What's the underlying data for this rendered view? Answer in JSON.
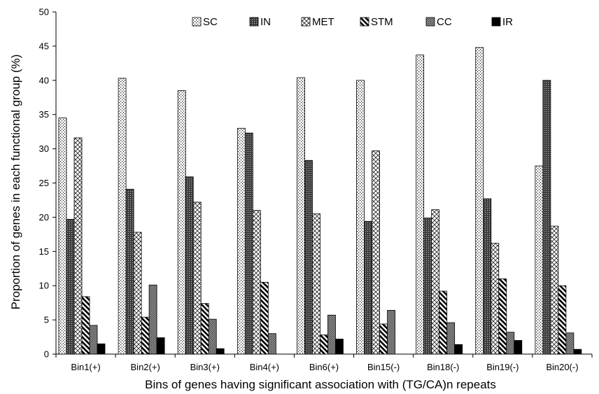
{
  "chart_data": {
    "type": "bar",
    "title": "",
    "xlabel": "Bins of genes having significant association with (TG/CA)n repeats",
    "ylabel": "Proportion of genes in each functional group (%)",
    "ylim": [
      0,
      50
    ],
    "yticks": [
      0,
      5,
      10,
      15,
      20,
      25,
      30,
      35,
      40,
      45,
      50
    ],
    "grid": false,
    "legend_position": "top",
    "categories": [
      "Bin1(+)",
      "Bin2(+)",
      "Bin3(+)",
      "Bin4(+)",
      "Bin6(+)",
      "Bin15(-)",
      "Bin18(-)",
      "Bin19(-)",
      "Bin20(-)"
    ],
    "series": [
      {
        "name": "SC",
        "pattern": "dots",
        "values": [
          34.5,
          40.3,
          38.5,
          33.0,
          40.4,
          40.0,
          43.7,
          44.8,
          27.5
        ]
      },
      {
        "name": "IN",
        "pattern": "dense-check",
        "values": [
          19.7,
          24.1,
          25.9,
          32.3,
          28.3,
          19.4,
          19.9,
          22.7,
          40.0
        ]
      },
      {
        "name": "MET",
        "pattern": "crosshatch",
        "values": [
          31.6,
          17.8,
          22.2,
          21.0,
          20.5,
          29.7,
          21.1,
          16.2,
          18.7
        ]
      },
      {
        "name": "STM",
        "pattern": "bold-diagonal",
        "values": [
          8.4,
          5.4,
          7.4,
          10.5,
          2.8,
          4.4,
          9.2,
          11.0,
          10.0
        ]
      },
      {
        "name": "CC",
        "pattern": "fine-grid",
        "values": [
          4.2,
          10.1,
          5.1,
          3.0,
          5.7,
          6.4,
          4.6,
          3.2,
          3.1
        ]
      },
      {
        "name": "IR",
        "pattern": "solid-black",
        "values": [
          1.5,
          2.4,
          0.8,
          0.0,
          2.2,
          0.0,
          1.4,
          2.0,
          0.7
        ]
      }
    ]
  }
}
